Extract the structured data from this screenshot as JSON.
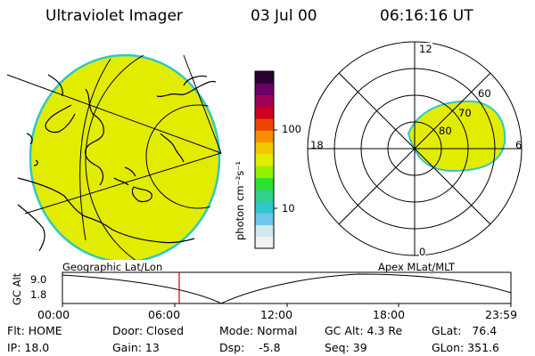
{
  "header": {
    "title": "Ultraviolet Imager",
    "date": "03 Jul 00",
    "time": "06:16:16 UT"
  },
  "colors": {
    "aurora_fill": "#e1ec00",
    "aurora_edge": "#2ec8c8",
    "cursor_line": "#cc0000"
  },
  "colorbar": {
    "label": "photon cm⁻²s⁻¹",
    "ticks": [
      "100",
      "10"
    ],
    "colors": [
      "#f2f2f2",
      "#d2e8ee",
      "#6ec8ee",
      "#30c8c8",
      "#30d08c",
      "#2ee22e",
      "#98f000",
      "#e1ec00",
      "#f2c800",
      "#f59000",
      "#ee4400",
      "#cc0022",
      "#a00055",
      "#6a0066",
      "#2a0033"
    ]
  },
  "polar_plot": {
    "mlt_labels": [
      "12",
      "18",
      "6",
      "0"
    ],
    "lat_labels": [
      "60",
      "70",
      "80"
    ]
  },
  "timeline": {
    "left_label": "Geographic Lat/Lon",
    "right_label": "Apex MLat/MLT",
    "axis_title": "GC Alt",
    "y_top": "9.0",
    "y_bottom": "1.8",
    "x_ticks": [
      "00:00",
      "06:00",
      "12:00",
      "18:00",
      "23:59"
    ],
    "cursor_time": "06:16"
  },
  "status": {
    "flt": "Flt: HOME",
    "ip": "IP: 18.0",
    "door": "Door: Closed",
    "gain": "Gain: 13",
    "mode": "Mode: Normal",
    "dsp": "Dsp:    -5.8",
    "gc_alt": "GC Alt: 4.3 Re",
    "seq": "Seq: 39",
    "glat": "GLat:   76.4",
    "glon": "GLon: 351.6"
  }
}
